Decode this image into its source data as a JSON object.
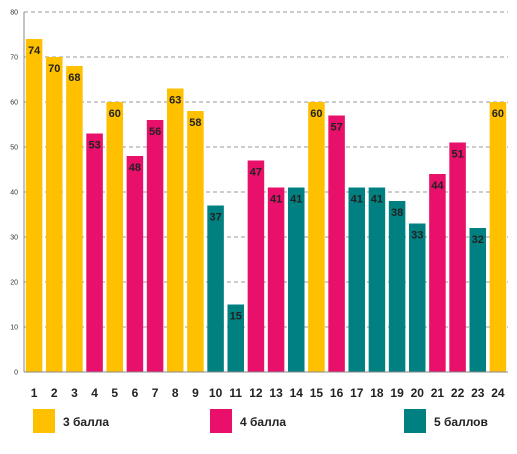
{
  "chart_data": {
    "type": "bar",
    "categories": [
      "1",
      "2",
      "3",
      "4",
      "5",
      "6",
      "7",
      "8",
      "9",
      "10",
      "11",
      "12",
      "13",
      "14",
      "15",
      "16",
      "17",
      "18",
      "19",
      "20",
      "21",
      "22",
      "23",
      "24"
    ],
    "values": [
      74,
      70,
      68,
      53,
      60,
      48,
      56,
      63,
      58,
      37,
      15,
      47,
      41,
      41,
      60,
      57,
      41,
      41,
      38,
      33,
      44,
      51,
      32,
      60
    ],
    "groups": [
      0,
      0,
      0,
      1,
      0,
      1,
      1,
      0,
      0,
      2,
      2,
      1,
      1,
      2,
      0,
      1,
      2,
      2,
      2,
      2,
      1,
      1,
      2,
      0
    ],
    "ylim": [
      0,
      80
    ],
    "yticks": [
      0,
      10,
      20,
      30,
      40,
      50,
      60,
      70,
      80
    ],
    "grid": true,
    "legend_position": "bottom",
    "series": [
      {
        "name": "3 балла",
        "color": "#FFC000"
      },
      {
        "name": "4 балла",
        "color": "#E8106A"
      },
      {
        "name": "5 баллов",
        "color": "#008080"
      }
    ]
  }
}
